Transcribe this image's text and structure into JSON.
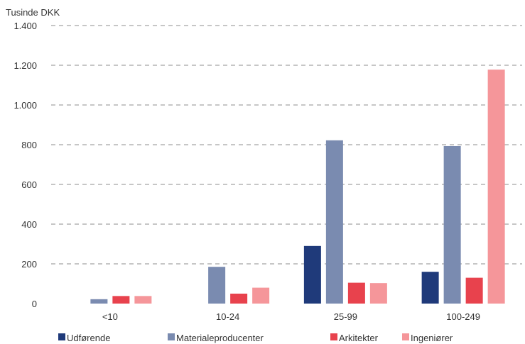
{
  "chart_data": {
    "type": "bar",
    "unit_label": "Tusinde DKK",
    "categories": [
      "<10",
      "10-24",
      "25-99",
      "100-249"
    ],
    "series": [
      {
        "name": "Udførende",
        "color": "#1f3a7a",
        "values": [
          0,
          0,
          290,
          160
        ]
      },
      {
        "name": "Materialeproducenter",
        "color": "#7a8bb0",
        "values": [
          22,
          185,
          822,
          793
        ]
      },
      {
        "name": "Arkitekter",
        "color": "#e8424d",
        "values": [
          38,
          50,
          105,
          130
        ]
      },
      {
        "name": "Ingeniører",
        "color": "#f5969a",
        "values": [
          38,
          80,
          103,
          1178
        ]
      }
    ],
    "ylim": [
      0,
      1400
    ],
    "yticks": [
      0,
      200,
      400,
      600,
      800,
      1000,
      1200,
      1400
    ],
    "ytick_labels": [
      "0",
      "200",
      "400",
      "600",
      "800",
      "1.000",
      "1.200",
      "1.400"
    ],
    "grid": true,
    "legend_position": "bottom"
  }
}
